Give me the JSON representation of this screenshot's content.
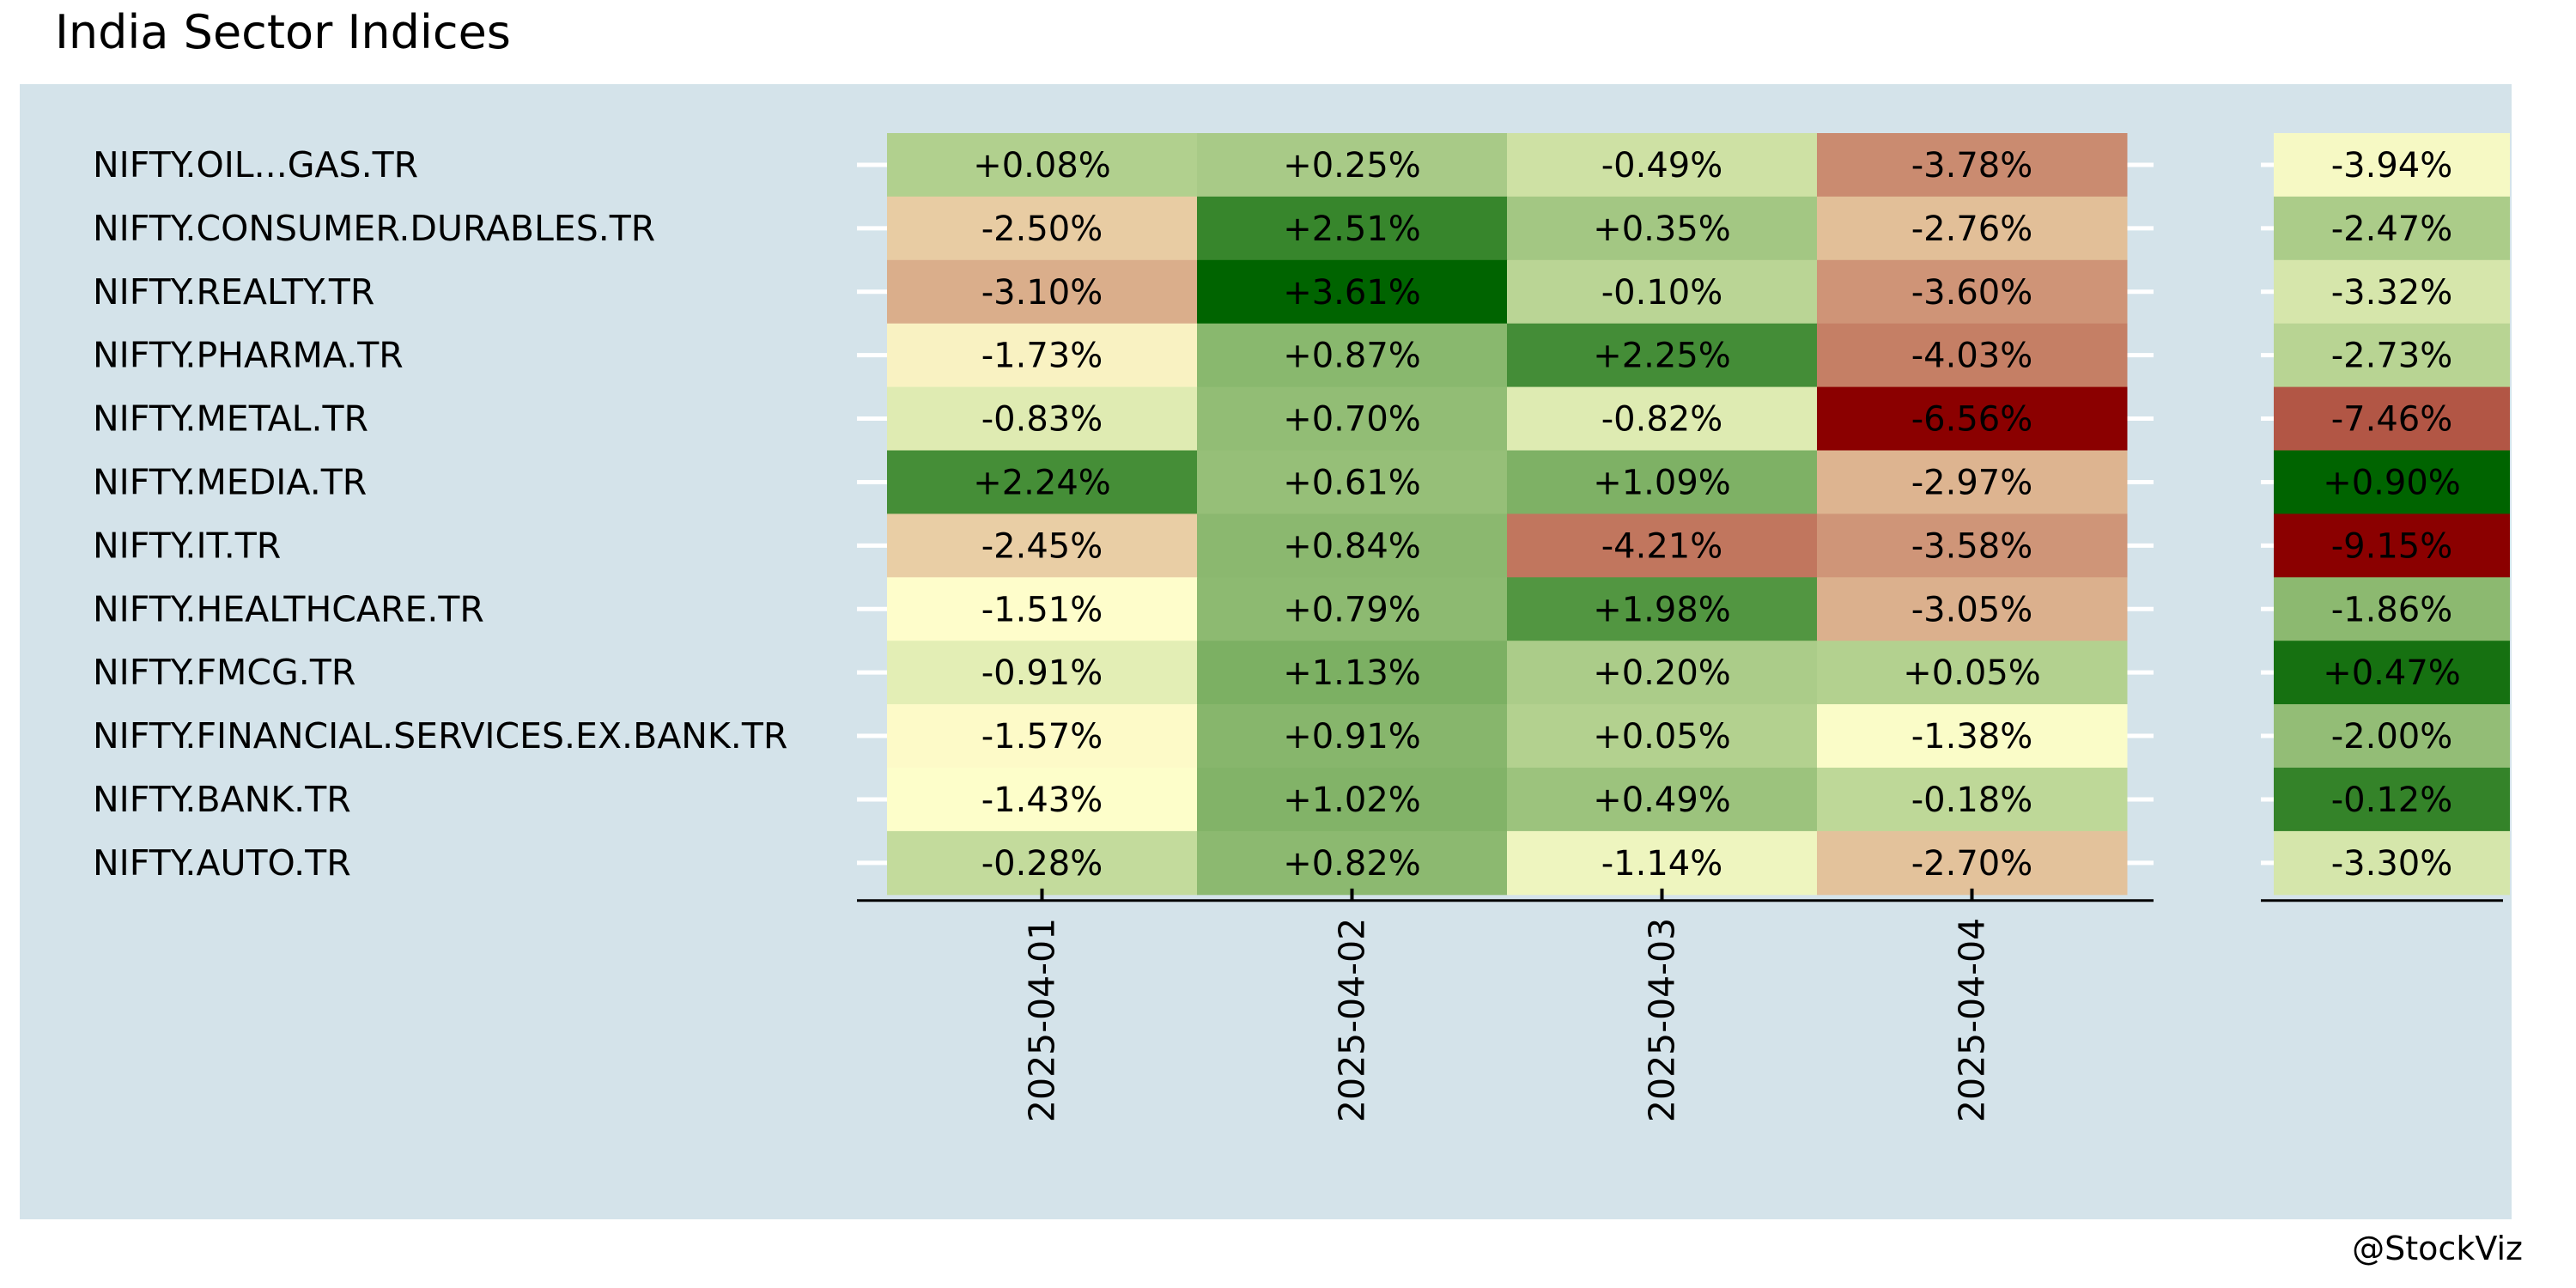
{
  "title": "India Sector Indices",
  "watermark": "@StockViz",
  "colors": {
    "panel_bg": "#d4e3ea",
    "gridline": "#ffffff",
    "axis": "#000000",
    "negative_max": "#8b0000",
    "neutral": "#ffffcc",
    "positive_max": "#006400"
  },
  "chart_data": {
    "type": "heatmap",
    "title": "India Sector Indices",
    "xlabel": "",
    "ylabel": "",
    "x": [
      "2025-04-01",
      "2025-04-02",
      "2025-04-03",
      "2025-04-04"
    ],
    "y": [
      "NIFTY.OIL...GAS.TR",
      "NIFTY.CONSUMER.DURABLES.TR",
      "NIFTY.REALTY.TR",
      "NIFTY.PHARMA.TR",
      "NIFTY.METAL.TR",
      "NIFTY.MEDIA.TR",
      "NIFTY.IT.TR",
      "NIFTY.HEALTHCARE.TR",
      "NIFTY.FMCG.TR",
      "NIFTY.FINANCIAL.SERVICES.EX.BANK.TR",
      "NIFTY.BANK.TR",
      "NIFTY.AUTO.TR"
    ],
    "values": [
      [
        0.08,
        0.25,
        -0.49,
        -3.78
      ],
      [
        -2.5,
        2.51,
        0.35,
        -2.76
      ],
      [
        -3.1,
        3.61,
        -0.1,
        -3.6
      ],
      [
        -1.73,
        0.87,
        2.25,
        -4.03
      ],
      [
        -0.83,
        0.7,
        -0.82,
        -6.56
      ],
      [
        2.24,
        0.61,
        1.09,
        -2.97
      ],
      [
        -2.45,
        0.84,
        -4.21,
        -3.58
      ],
      [
        -1.51,
        0.79,
        1.98,
        -3.05
      ],
      [
        -0.91,
        1.13,
        0.2,
        0.05
      ],
      [
        -1.57,
        0.91,
        0.05,
        -1.38
      ],
      [
        -1.43,
        1.02,
        0.49,
        -0.18
      ],
      [
        -0.28,
        0.82,
        -1.14,
        -2.7
      ]
    ],
    "labels": [
      [
        "+0.08%",
        "+0.25%",
        "-0.49%",
        "-3.78%"
      ],
      [
        "-2.50%",
        "+2.51%",
        "+0.35%",
        "-2.76%"
      ],
      [
        "-3.10%",
        "+3.61%",
        "-0.10%",
        "-3.60%"
      ],
      [
        "-1.73%",
        "+0.87%",
        "+2.25%",
        "-4.03%"
      ],
      [
        "-0.83%",
        "+0.70%",
        "-0.82%",
        "-6.56%"
      ],
      [
        "+2.24%",
        "+0.61%",
        "+1.09%",
        "-2.97%"
      ],
      [
        "-2.45%",
        "+0.84%",
        "-4.21%",
        "-3.58%"
      ],
      [
        "-1.51%",
        "+0.79%",
        "+1.98%",
        "-3.05%"
      ],
      [
        "-0.91%",
        "+1.13%",
        "+0.20%",
        "+0.05%"
      ],
      [
        "-1.57%",
        "+0.91%",
        "+0.05%",
        "-1.38%"
      ],
      [
        "-1.43%",
        "+1.02%",
        "+0.49%",
        "-0.18%"
      ],
      [
        "-0.28%",
        "+0.82%",
        "-1.14%",
        "-2.70%"
      ]
    ],
    "total_values": [
      -3.94,
      -2.47,
      -3.32,
      -2.73,
      -7.46,
      0.9,
      -9.15,
      -1.86,
      0.47,
      -2.0,
      -0.12,
      -3.3
    ],
    "total_labels": [
      "-3.94%",
      "-2.47%",
      "-3.32%",
      "-2.73%",
      "-7.46%",
      "+0.90%",
      "-9.15%",
      "-1.86%",
      "+0.47%",
      "-2.00%",
      "-0.12%",
      "-3.30%"
    ],
    "grid": true,
    "legend": "none"
  }
}
